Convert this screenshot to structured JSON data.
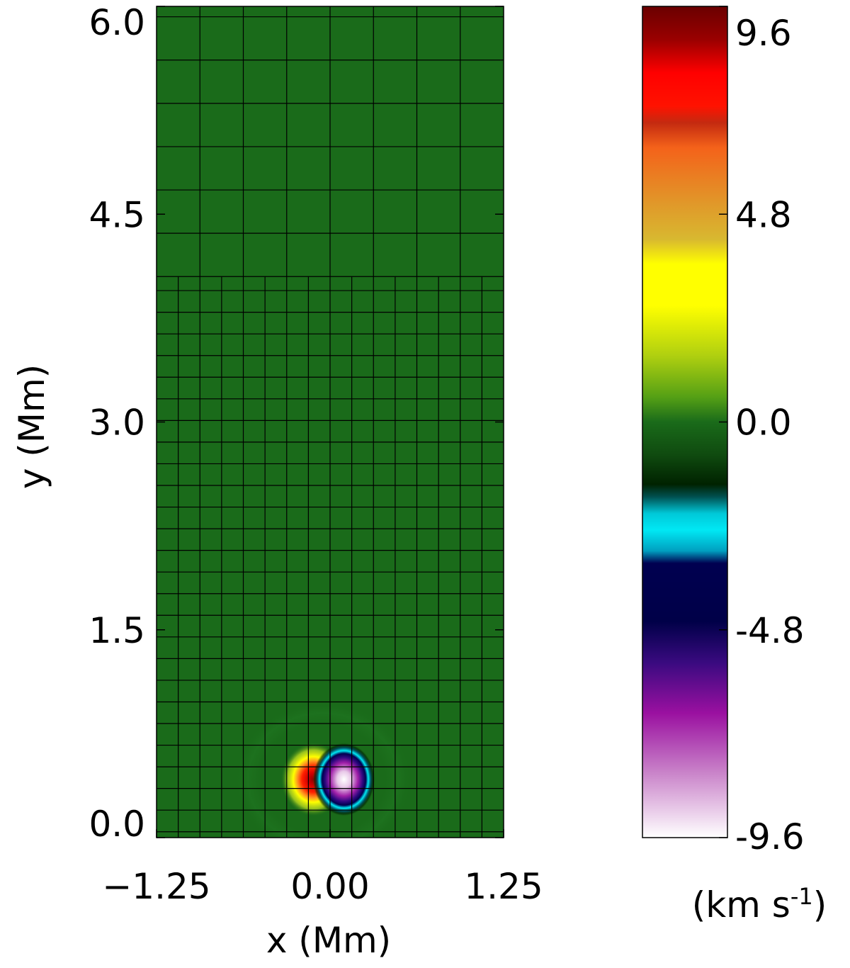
{
  "chart_data": {
    "type": "heatmap",
    "title": "",
    "xlabel": "x (Mm)",
    "ylabel": "y (Mm)",
    "xlim": [
      -1.25,
      1.25
    ],
    "ylim": [
      0.0,
      6.0
    ],
    "x_ticks": [
      "−1.25",
      "0.00",
      "1.25"
    ],
    "y_ticks": [
      "0.0",
      "1.5",
      "3.0",
      "4.5",
      "6.0"
    ],
    "background_value": 0.0,
    "features": [
      {
        "kind": "positive-lobe",
        "x": -0.12,
        "y": 0.42,
        "peak": 9.6
      },
      {
        "kind": "negative-lobe",
        "x": 0.1,
        "y": 0.42,
        "peak": -9.6
      }
    ],
    "grid": {
      "refinement_boundary_y": 4.05,
      "coarse_cell_size": 0.3125,
      "fine_cell_size": 0.15625
    },
    "colorbar": {
      "range": [
        -9.6,
        9.6
      ],
      "ticks": [
        "9.6",
        "4.8",
        "0.0",
        "-4.8",
        "-9.6"
      ],
      "label_main": "(km s",
      "label_sup": "-1",
      "label_close": ")"
    },
    "colors": {
      "background": "#1a6b1a",
      "grid_line": "#000000"
    }
  }
}
